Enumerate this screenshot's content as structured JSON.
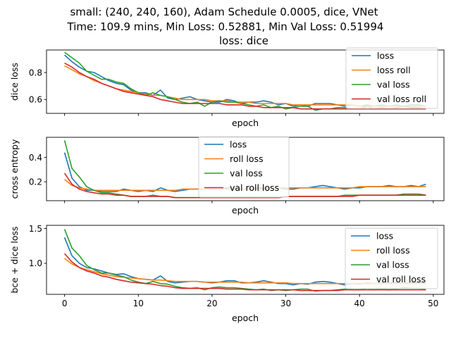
{
  "figure": {
    "title_lines": [
      "small: (240, 240, 160), Adam Schedule 0.0005, dice, VNet",
      "Time: 109.9 mins, Min Loss: 0.52881, Min Val Loss: 0.51994",
      "loss: dice"
    ]
  },
  "colors": {
    "blue": "#1f77b4",
    "orange": "#ff7f0e",
    "green": "#2ca02c",
    "red": "#d62728"
  },
  "chart_data": [
    {
      "type": "line",
      "xlabel": "epoch",
      "ylabel": "dice loss",
      "xlim": [
        -2.45,
        51.45
      ],
      "ylim": [
        0.497,
        0.967
      ],
      "yticks": [
        0.6,
        0.8
      ],
      "ytick_labels": [
        "0.6",
        "0.8"
      ],
      "xtick_labels": [],
      "legend_position": "top-right",
      "x": [
        0,
        1,
        2,
        3,
        4,
        5,
        6,
        7,
        8,
        9,
        10,
        11,
        12,
        13,
        14,
        15,
        16,
        17,
        18,
        19,
        20,
        21,
        22,
        23,
        24,
        25,
        26,
        27,
        28,
        29,
        30,
        31,
        32,
        33,
        34,
        35,
        36,
        37,
        38,
        39,
        40,
        41,
        42,
        43,
        44,
        45,
        46,
        47,
        48,
        49
      ],
      "series": [
        {
          "name": "loss",
          "color": "#1f77b4",
          "values": [
            0.93,
            0.88,
            0.84,
            0.81,
            0.8,
            0.77,
            0.74,
            0.72,
            0.71,
            0.67,
            0.65,
            0.65,
            0.63,
            0.67,
            0.61,
            0.6,
            0.61,
            0.62,
            0.6,
            0.59,
            0.58,
            0.58,
            0.6,
            0.59,
            0.57,
            0.58,
            0.58,
            0.59,
            0.58,
            0.56,
            0.57,
            0.55,
            0.56,
            0.55,
            0.57,
            0.57,
            0.57,
            0.56,
            0.55,
            0.56,
            0.55,
            0.56,
            0.55,
            0.56,
            0.55,
            0.56,
            0.55,
            0.56,
            0.56,
            0.55
          ]
        },
        {
          "name": "loss roll",
          "color": "#ff7f0e",
          "values": [
            0.85,
            0.82,
            0.79,
            0.77,
            0.74,
            0.72,
            0.7,
            0.68,
            0.67,
            0.66,
            0.65,
            0.64,
            0.63,
            0.63,
            0.62,
            0.61,
            0.6,
            0.6,
            0.6,
            0.6,
            0.59,
            0.59,
            0.59,
            0.58,
            0.58,
            0.58,
            0.57,
            0.57,
            0.57,
            0.57,
            0.57,
            0.56,
            0.56,
            0.56,
            0.56,
            0.56,
            0.56,
            0.56,
            0.56,
            0.56,
            0.55,
            0.55,
            0.55,
            0.55,
            0.55,
            0.55,
            0.55,
            0.55,
            0.55,
            0.55
          ]
        },
        {
          "name": "val loss",
          "color": "#2ca02c",
          "values": [
            0.95,
            0.91,
            0.87,
            0.81,
            0.78,
            0.75,
            0.75,
            0.73,
            0.72,
            0.68,
            0.65,
            0.63,
            0.65,
            0.63,
            0.62,
            0.6,
            0.58,
            0.57,
            0.58,
            0.55,
            0.58,
            0.59,
            0.58,
            0.58,
            0.57,
            0.56,
            0.55,
            0.56,
            0.54,
            0.55,
            0.53,
            0.54,
            0.55,
            0.55,
            0.52,
            0.53,
            0.53,
            0.54,
            0.54,
            0.53,
            0.53,
            0.55,
            0.53,
            0.54,
            0.53,
            0.54,
            0.55,
            0.54,
            0.54,
            0.53
          ]
        },
        {
          "name": "val loss roll",
          "color": "#d62728",
          "values": [
            0.87,
            0.84,
            0.8,
            0.77,
            0.75,
            0.72,
            0.7,
            0.68,
            0.66,
            0.65,
            0.64,
            0.63,
            0.62,
            0.6,
            0.59,
            0.58,
            0.57,
            0.57,
            0.57,
            0.57,
            0.57,
            0.57,
            0.56,
            0.56,
            0.56,
            0.55,
            0.55,
            0.54,
            0.54,
            0.54,
            0.54,
            0.54,
            0.53,
            0.53,
            0.53,
            0.53,
            0.53,
            0.53,
            0.53,
            0.53,
            0.53,
            0.53,
            0.53,
            0.53,
            0.53,
            0.53,
            0.53,
            0.53,
            0.53,
            0.53
          ]
        }
      ]
    },
    {
      "type": "line",
      "xlabel": "epoch",
      "ylabel": "cross entropy",
      "xlim": [
        -2.45,
        51.45
      ],
      "ylim": [
        0.045,
        0.565
      ],
      "yticks": [
        0.2,
        0.4
      ],
      "ytick_labels": [
        "0.2",
        "0.4"
      ],
      "xtick_labels": [],
      "legend_position": "top-center",
      "x": [
        0,
        1,
        2,
        3,
        4,
        5,
        6,
        7,
        8,
        9,
        10,
        11,
        12,
        13,
        14,
        15,
        16,
        17,
        18,
        19,
        20,
        21,
        22,
        23,
        24,
        25,
        26,
        27,
        28,
        29,
        30,
        31,
        32,
        33,
        34,
        35,
        36,
        37,
        38,
        39,
        40,
        41,
        42,
        43,
        44,
        45,
        46,
        47,
        48,
        49
      ],
      "series": [
        {
          "name": "loss",
          "color": "#1f77b4",
          "values": [
            0.44,
            0.23,
            0.16,
            0.13,
            0.13,
            0.12,
            0.12,
            0.12,
            0.14,
            0.13,
            0.12,
            0.13,
            0.12,
            0.15,
            0.13,
            0.12,
            0.13,
            0.14,
            0.14,
            0.14,
            0.14,
            0.14,
            0.15,
            0.15,
            0.14,
            0.14,
            0.15,
            0.15,
            0.15,
            0.15,
            0.14,
            0.14,
            0.15,
            0.15,
            0.16,
            0.17,
            0.16,
            0.15,
            0.14,
            0.15,
            0.15,
            0.16,
            0.16,
            0.16,
            0.17,
            0.16,
            0.16,
            0.17,
            0.16,
            0.18
          ]
        },
        {
          "name": "roll loss",
          "color": "#ff7f0e",
          "values": [
            0.22,
            0.17,
            0.15,
            0.14,
            0.13,
            0.13,
            0.13,
            0.13,
            0.13,
            0.13,
            0.13,
            0.13,
            0.13,
            0.13,
            0.13,
            0.13,
            0.14,
            0.14,
            0.14,
            0.14,
            0.14,
            0.14,
            0.14,
            0.14,
            0.14,
            0.14,
            0.14,
            0.14,
            0.15,
            0.15,
            0.15,
            0.15,
            0.15,
            0.15,
            0.15,
            0.15,
            0.15,
            0.15,
            0.15,
            0.15,
            0.16,
            0.16,
            0.16,
            0.16,
            0.16,
            0.16,
            0.16,
            0.16,
            0.16,
            0.16
          ]
        },
        {
          "name": "val loss",
          "color": "#2ca02c",
          "values": [
            0.54,
            0.31,
            0.24,
            0.16,
            0.13,
            0.11,
            0.11,
            0.1,
            0.09,
            0.08,
            0.08,
            0.08,
            0.09,
            0.08,
            0.08,
            0.07,
            0.07,
            0.07,
            0.07,
            0.07,
            0.07,
            0.07,
            0.07,
            0.07,
            0.07,
            0.07,
            0.07,
            0.07,
            0.07,
            0.07,
            0.08,
            0.08,
            0.08,
            0.08,
            0.08,
            0.08,
            0.08,
            0.08,
            0.09,
            0.09,
            0.09,
            0.09,
            0.09,
            0.09,
            0.09,
            0.09,
            0.1,
            0.1,
            0.1,
            0.09
          ]
        },
        {
          "name": "val roll loss",
          "color": "#d62728",
          "values": [
            0.27,
            0.18,
            0.14,
            0.12,
            0.11,
            0.1,
            0.1,
            0.09,
            0.09,
            0.08,
            0.08,
            0.08,
            0.08,
            0.08,
            0.08,
            0.07,
            0.07,
            0.07,
            0.07,
            0.07,
            0.07,
            0.07,
            0.07,
            0.07,
            0.07,
            0.07,
            0.07,
            0.07,
            0.07,
            0.07,
            0.08,
            0.08,
            0.08,
            0.08,
            0.08,
            0.08,
            0.08,
            0.08,
            0.08,
            0.08,
            0.09,
            0.09,
            0.09,
            0.09,
            0.09,
            0.09,
            0.09,
            0.09,
            0.09,
            0.09
          ]
        }
      ]
    },
    {
      "type": "line",
      "xlabel": "epoch",
      "ylabel": "bce + dice loss",
      "xlim": [
        -2.45,
        51.45
      ],
      "ylim": [
        0.555,
        1.545
      ],
      "yticks": [
        1.0,
        1.5
      ],
      "ytick_labels": [
        "1.0",
        "1.5"
      ],
      "xticks": [
        0,
        10,
        20,
        30,
        40,
        50
      ],
      "xtick_labels": [
        "0",
        "10",
        "20",
        "30",
        "40",
        "50"
      ],
      "legend_position": "top-right",
      "x": [
        0,
        1,
        2,
        3,
        4,
        5,
        6,
        7,
        8,
        9,
        10,
        11,
        12,
        13,
        14,
        15,
        16,
        17,
        18,
        19,
        20,
        21,
        22,
        23,
        24,
        25,
        26,
        27,
        28,
        29,
        30,
        31,
        32,
        33,
        34,
        35,
        36,
        37,
        38,
        39,
        40,
        41,
        42,
        43,
        44,
        45,
        46,
        47,
        48,
        49
      ],
      "series": [
        {
          "name": "loss",
          "color": "#1f77b4",
          "values": [
            1.37,
            1.11,
            1.0,
            0.94,
            0.92,
            0.89,
            0.86,
            0.84,
            0.85,
            0.81,
            0.78,
            0.77,
            0.76,
            0.82,
            0.74,
            0.72,
            0.73,
            0.74,
            0.74,
            0.73,
            0.72,
            0.73,
            0.75,
            0.75,
            0.72,
            0.72,
            0.73,
            0.75,
            0.73,
            0.71,
            0.71,
            0.69,
            0.71,
            0.7,
            0.73,
            0.74,
            0.73,
            0.71,
            0.69,
            0.71,
            0.7,
            0.72,
            0.71,
            0.72,
            0.72,
            0.72,
            0.71,
            0.73,
            0.72,
            0.73
          ]
        },
        {
          "name": "roll loss",
          "color": "#ff7f0e",
          "values": [
            1.07,
            0.99,
            0.94,
            0.91,
            0.88,
            0.85,
            0.83,
            0.81,
            0.8,
            0.79,
            0.78,
            0.77,
            0.76,
            0.76,
            0.75,
            0.74,
            0.74,
            0.74,
            0.74,
            0.73,
            0.73,
            0.73,
            0.73,
            0.73,
            0.73,
            0.72,
            0.72,
            0.72,
            0.72,
            0.72,
            0.72,
            0.71,
            0.71,
            0.71,
            0.71,
            0.71,
            0.71,
            0.71,
            0.71,
            0.71,
            0.71,
            0.71,
            0.71,
            0.71,
            0.71,
            0.71,
            0.71,
            0.71,
            0.71,
            0.71
          ]
        },
        {
          "name": "val loss",
          "color": "#2ca02c",
          "values": [
            1.49,
            1.22,
            1.11,
            0.97,
            0.91,
            0.86,
            0.86,
            0.83,
            0.81,
            0.76,
            0.73,
            0.71,
            0.74,
            0.71,
            0.7,
            0.67,
            0.65,
            0.64,
            0.65,
            0.62,
            0.65,
            0.66,
            0.65,
            0.65,
            0.64,
            0.63,
            0.62,
            0.63,
            0.61,
            0.62,
            0.61,
            0.62,
            0.63,
            0.63,
            0.6,
            0.61,
            0.61,
            0.62,
            0.63,
            0.62,
            0.62,
            0.64,
            0.62,
            0.63,
            0.62,
            0.63,
            0.65,
            0.64,
            0.64,
            0.62
          ]
        },
        {
          "name": "val roll loss",
          "color": "#d62728",
          "values": [
            1.14,
            1.02,
            0.94,
            0.89,
            0.86,
            0.82,
            0.8,
            0.77,
            0.75,
            0.73,
            0.72,
            0.71,
            0.7,
            0.68,
            0.67,
            0.65,
            0.64,
            0.64,
            0.64,
            0.64,
            0.64,
            0.64,
            0.63,
            0.63,
            0.63,
            0.62,
            0.62,
            0.62,
            0.62,
            0.62,
            0.62,
            0.62,
            0.61,
            0.61,
            0.61,
            0.61,
            0.61,
            0.61,
            0.62,
            0.62,
            0.62,
            0.62,
            0.62,
            0.62,
            0.62,
            0.62,
            0.62,
            0.62,
            0.62,
            0.62
          ]
        }
      ]
    }
  ]
}
